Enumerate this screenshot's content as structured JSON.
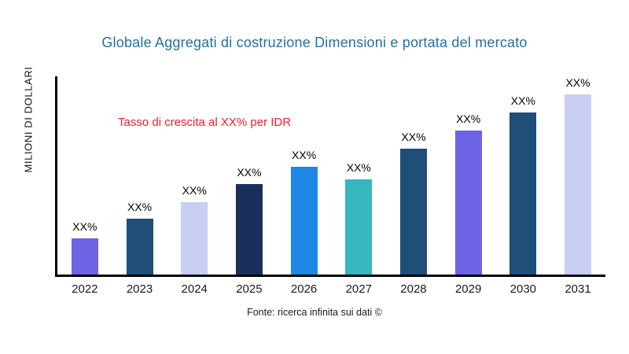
{
  "chart_data": {
    "type": "bar",
    "title": "Globale Aggregati di costruzione Dimensioni e portata del mercato",
    "ylabel": "MILIONI DI DOLLARI",
    "xlabel": "",
    "annotation": "Tasso di crescita al XX% per IDR",
    "source": "Fonte: ricerca infinita sui dati ©",
    "categories": [
      "2022",
      "2023",
      "2024",
      "2025",
      "2026",
      "2027",
      "2028",
      "2029",
      "2030",
      "2031"
    ],
    "values": [
      20,
      31,
      40,
      50,
      60,
      53,
      70,
      80,
      90,
      100
    ],
    "bar_labels": [
      "XX%",
      "XX%",
      "XX%",
      "XX%",
      "XX%",
      "XX%",
      "XX%",
      "XX%",
      "XX%",
      "XX%"
    ],
    "bar_colors": [
      "#6e62e5",
      "#1f4e79",
      "#c9cef2",
      "#1b2f5b",
      "#1f87e8",
      "#36b6bd",
      "#1f4e79",
      "#6e62e5",
      "#1f4e79",
      "#c9cef2"
    ],
    "ylim": [
      0,
      110
    ],
    "grid": false,
    "legend": false,
    "values_note": "relative units estimated from bar heights; no numeric y-axis scale shown",
    "colors": {
      "title": "#2471a3",
      "annotation": "#e8212e",
      "axis": "#000000"
    }
  }
}
